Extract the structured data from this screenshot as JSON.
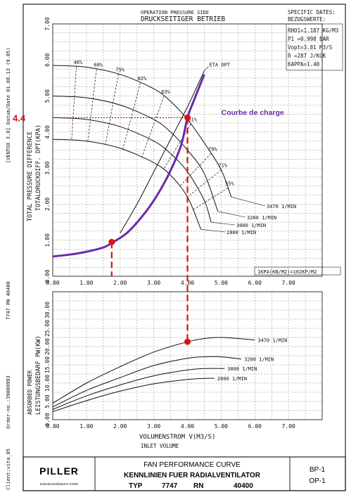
{
  "header": {
    "line1": "OPERATION PRESSURE SIDE",
    "line2": "DRUCKSEITIGER BETRIEB"
  },
  "specs": {
    "title1": "SPECIFIC DATES:",
    "title2": "BEZUGSWERTE:",
    "rows": [
      "RHO1=1.187 KG/M3",
      "P1  =0.998 BAR",
      "Vopt=3.81  M3/S",
      "R   =287   J/KGK",
      "KAPPA=1.40"
    ]
  },
  "side": {
    "version": "[VENTOX 3.0]  Datum/Date 01.08.13 (9.05)",
    "job": "7747 RN 40400",
    "order": "Order-no.:39000993",
    "client": "Client:vita_05"
  },
  "conversion_note": "1KPA(KN/M2)=102KP/M2",
  "annotation": {
    "value_label": "4.4",
    "curve_label": "Courbe de charge"
  },
  "colors": {
    "system_curve": "#6a2aa8",
    "markers": "#dd1111",
    "label_red": "#dd1111",
    "label_purple": "#6a2aa8"
  },
  "title_block": {
    "logo": "PILLER",
    "logo_sub": "Industrieventilatoren GmbH",
    "title1": "FAN PERFORMANCE CURVE",
    "title2": "KENNLINIEN FUER RADIALVENTILATOR",
    "typ_label": "TYP",
    "typ_value": "7747",
    "rn_label": "RN",
    "rn_value": "40400",
    "code1": "BP-1",
    "code2": "OP-1"
  },
  "chart_data": [
    {
      "type": "line",
      "name": "pressure",
      "ylabel_en": "TOTAL PRESSURE DIFFERENCE",
      "ylabel_de": "TOTALDRUCKDIFF. DPT(KPA)",
      "xlim": [
        0,
        8
      ],
      "ylim": [
        0,
        7
      ],
      "x_ticks": [
        "0.00",
        "1.00",
        "2.00",
        "3.00",
        "4.00",
        "5.00",
        "6.00",
        "7.00"
      ],
      "y_ticks": [
        "0.00",
        "1.00",
        "2.00",
        "3.00",
        "4.00",
        "5.00",
        "6.00",
        "7.00"
      ],
      "series": [
        {
          "name": "3470 1/MIN",
          "x": [
            0,
            1,
            2,
            3,
            3.5,
            4,
            4.5,
            5,
            5.3
          ],
          "y": [
            5.85,
            5.8,
            5.6,
            5.2,
            4.85,
            4.35,
            3.7,
            2.95,
            2.2
          ]
        },
        {
          "name": "3200 1/MIN",
          "x": [
            0,
            1,
            2,
            3,
            3.5,
            4,
            4.5,
            4.9
          ],
          "y": [
            5.0,
            4.95,
            4.75,
            4.35,
            4.0,
            3.5,
            2.85,
            1.8
          ]
        },
        {
          "name": "3000 1/MIN",
          "x": [
            0,
            1,
            2,
            3,
            3.5,
            4,
            4.5,
            4.7
          ],
          "y": [
            4.4,
            4.35,
            4.15,
            3.75,
            3.4,
            2.9,
            2.1,
            1.5
          ]
        },
        {
          "name": "2800 1/MIN",
          "x": [
            0,
            1,
            2,
            3,
            3.5,
            4,
            4.4
          ],
          "y": [
            3.8,
            3.75,
            3.55,
            3.15,
            2.8,
            2.2,
            1.3
          ]
        }
      ],
      "efficiency_labels": [
        "46%",
        "68%",
        "75%",
        "82%",
        "83%",
        "81%",
        "79%",
        "71%",
        "55%"
      ],
      "eta_opt_label": "ETA OPT",
      "eta_opt": {
        "x": [
          2.0,
          2.5,
          3.0,
          3.5,
          4.0,
          4.5
        ],
        "y": [
          1.2,
          2.0,
          2.9,
          3.8,
          4.7,
          5.7
        ]
      },
      "system_curve": {
        "name": "Courbe de charge",
        "x": [
          0,
          0.5,
          1.0,
          1.5,
          1.8,
          2.2,
          2.6,
          3.0,
          3.4,
          3.8,
          4.0,
          4.2,
          4.5
        ],
        "y": [
          0.55,
          0.6,
          0.68,
          0.8,
          0.95,
          1.2,
          1.6,
          2.1,
          2.75,
          3.6,
          4.4,
          4.9,
          5.6
        ]
      },
      "operating_point": {
        "x": 4.0,
        "y": 4.4
      },
      "low_point": {
        "x": 1.75,
        "y": 0.95
      }
    },
    {
      "type": "line",
      "name": "power",
      "ylabel_en": "ABSORBED POWER",
      "ylabel_de": "LEISTUNGSBEDARF PW(KW)",
      "xlabel_de": "VOLUMENSTROM V(M3/S)",
      "xlabel_en": "INLET VOLUME",
      "xlim": [
        0,
        8
      ],
      "ylim": [
        0,
        35
      ],
      "x_ticks": [
        "0.00",
        "1.00",
        "2.00",
        "3.00",
        "4.00",
        "5.00",
        "6.00",
        "7.00"
      ],
      "y_ticks": [
        "0.00",
        "5.00",
        "10.00",
        "15.00",
        "20.00",
        "25.00",
        "30.00"
      ],
      "series": [
        {
          "name": "3470 1/MIN",
          "x": [
            0,
            1,
            2,
            3,
            4,
            4.5,
            5,
            6
          ],
          "y": [
            4.5,
            10,
            14.5,
            18.5,
            21.3,
            22.2,
            22.5,
            21.8
          ]
        },
        {
          "name": "3200 1/MIN",
          "x": [
            0,
            1,
            2,
            3,
            4,
            4.5,
            5,
            5.6
          ],
          "y": [
            3.5,
            8,
            11.5,
            14.8,
            16.8,
            17.2,
            17.2,
            16.6
          ]
        },
        {
          "name": "3000 1/MIN",
          "x": [
            0,
            1,
            2,
            3,
            4,
            4.5,
            5.1
          ],
          "y": [
            2.8,
            6.5,
            9.5,
            12,
            13.6,
            14,
            14
          ]
        },
        {
          "name": "2800 1/MIN",
          "x": [
            0,
            1,
            2,
            3,
            4,
            4.5,
            4.8
          ],
          "y": [
            2.2,
            5.2,
            7.8,
            9.8,
            11,
            11.3,
            11.3
          ]
        }
      ],
      "operating_point": {
        "x": 4.0,
        "y": 21.3
      }
    }
  ]
}
